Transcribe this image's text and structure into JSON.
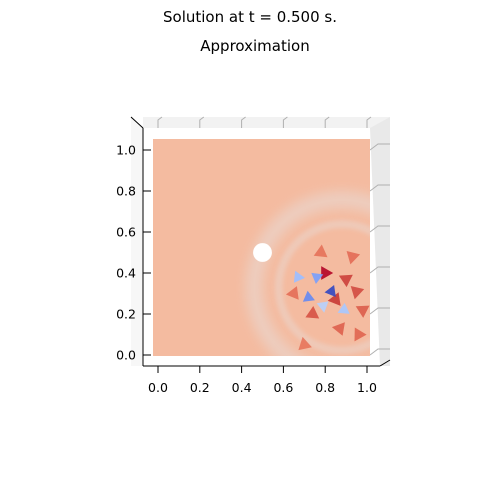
{
  "figure": {
    "suptitle": "Solution at t = 0.500 s.",
    "title": "Approximation"
  },
  "chart_data": {
    "type": "heatmap",
    "title": "Approximation",
    "xlabel": "",
    "ylabel": "",
    "xlim": [
      0.0,
      1.0
    ],
    "ylim": [
      0.0,
      1.0
    ],
    "x_ticks": [
      "0.0",
      "0.2",
      "0.4",
      "0.6",
      "0.8",
      "1.0"
    ],
    "y_ticks": [
      "0.0",
      "0.2",
      "0.4",
      "0.6",
      "0.8",
      "1.0"
    ],
    "colormap": "coolwarm",
    "background_value_color": "#f4bba0",
    "obstacle": {
      "center": [
        0.5,
        0.5
      ],
      "radius": 0.045
    },
    "wave_front": {
      "center": [
        0.88,
        0.33
      ],
      "radius": 0.42,
      "color": "#ead5cc"
    },
    "notes": "3D-projected surface plot viewed from above; triangulated solution field with wave disturbance in lower-right region",
    "hot_spots": [
      {
        "x": 0.8,
        "y": 0.4,
        "color": "#b40426"
      },
      {
        "x": 0.85,
        "y": 0.27,
        "color": "#c83a34"
      },
      {
        "x": 0.95,
        "y": 0.31,
        "color": "#d24b40"
      },
      {
        "x": 0.74,
        "y": 0.2,
        "color": "#d65244"
      },
      {
        "x": 0.9,
        "y": 0.37,
        "color": "#cc403a"
      },
      {
        "x": 0.7,
        "y": 0.05,
        "color": "#e7745b"
      },
      {
        "x": 0.87,
        "y": 0.13,
        "color": "#de614d"
      },
      {
        "x": 0.96,
        "y": 0.1,
        "color": "#e0654f"
      },
      {
        "x": 0.65,
        "y": 0.3,
        "color": "#e46e56"
      },
      {
        "x": 0.93,
        "y": 0.48,
        "color": "#e36c55"
      },
      {
        "x": 0.78,
        "y": 0.5,
        "color": "#e67259"
      },
      {
        "x": 0.98,
        "y": 0.22,
        "color": "#dc5d4a"
      }
    ],
    "cold_spots": [
      {
        "x": 0.72,
        "y": 0.28,
        "color": "#6a8bef"
      },
      {
        "x": 0.76,
        "y": 0.38,
        "color": "#7da0f9"
      },
      {
        "x": 0.83,
        "y": 0.31,
        "color": "#3b4cc0"
      },
      {
        "x": 0.67,
        "y": 0.38,
        "color": "#9ebeff"
      },
      {
        "x": 0.79,
        "y": 0.24,
        "color": "#b9d0f9"
      },
      {
        "x": 0.89,
        "y": 0.22,
        "color": "#aac7fd"
      }
    ]
  }
}
